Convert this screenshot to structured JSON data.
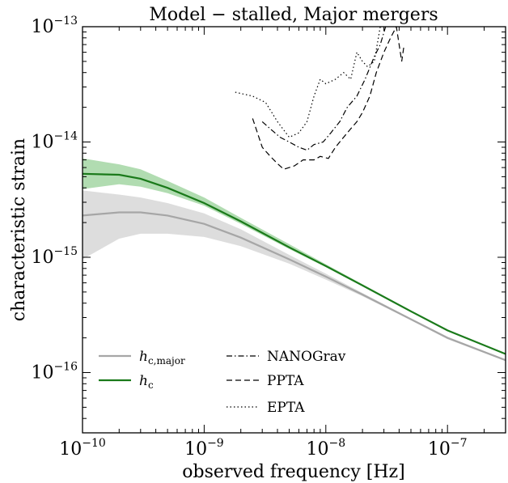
{
  "chart_data": {
    "type": "line",
    "title": "Model − stalled,  Major mergers",
    "xlabel": "observed frequency [Hz]",
    "ylabel": "characteristic strain",
    "xscale": "log",
    "yscale": "log",
    "xlim": [
      1e-10,
      3e-07
    ],
    "ylim": [
      3e-17,
      1e-13
    ],
    "grid": false,
    "legend_placement": "bottom-left",
    "x_ticks": [
      {
        "base": "10",
        "exp": "−10",
        "value": 1e-10
      },
      {
        "base": "10",
        "exp": "−9",
        "value": 1e-09
      },
      {
        "base": "10",
        "exp": "−8",
        "value": 1e-08
      },
      {
        "base": "10",
        "exp": "−7",
        "value": 1e-07
      }
    ],
    "y_ticks": [
      {
        "base": "10",
        "exp": "−16",
        "value": 1e-16
      },
      {
        "base": "10",
        "exp": "−15",
        "value": 1e-15
      },
      {
        "base": "10",
        "exp": "−14",
        "value": 1e-14
      },
      {
        "base": "10",
        "exp": "−13",
        "value": 1e-13
      }
    ],
    "series": [
      {
        "name": "h_c,major",
        "legend_main": "h",
        "legend_sub": "c,major",
        "color": "#a6a6a6",
        "band_color": "#d9d9d9",
        "style": "solid",
        "x": [
          1e-10,
          2e-10,
          3e-10,
          5e-10,
          1e-09,
          2e-09,
          5e-09,
          1e-08,
          2e-08,
          5e-08,
          1e-07,
          3e-07
        ],
        "y": [
          2.3e-15,
          2.45e-15,
          2.45e-15,
          2.3e-15,
          1.95e-15,
          1.48e-15,
          9.6e-16,
          6.8e-16,
          4.75e-16,
          2.9e-16,
          2e-16,
          1.28e-16
        ],
        "band_low": [
          9.6e-16,
          1.45e-15,
          1.6e-15,
          1.6e-15,
          1.5e-15,
          1.25e-15,
          8.8e-16,
          6.4e-16,
          4.6e-16,
          2.85e-16,
          1.95e-16,
          1.26e-16
        ],
        "band_high": [
          3.8e-15,
          3.5e-15,
          3.3e-15,
          2.95e-15,
          2.4e-15,
          1.75e-15,
          1.05e-15,
          7.2e-16,
          4.9e-16,
          2.95e-16,
          2.05e-16,
          1.3e-16
        ]
      },
      {
        "name": "h_c",
        "legend_main": "h",
        "legend_sub": "c",
        "color": "#1a7a1a",
        "band_color": "#a8d8a8",
        "style": "solid",
        "x": [
          1e-10,
          2e-10,
          3e-10,
          5e-10,
          1e-09,
          2e-09,
          5e-09,
          1e-08,
          2e-08,
          5e-08,
          1e-07,
          3e-07
        ],
        "y": [
          5.3e-15,
          5.2e-15,
          4.8e-15,
          4e-15,
          2.95e-15,
          2.05e-15,
          1.22e-15,
          8.4e-16,
          5.7e-16,
          3.4e-16,
          2.32e-16,
          1.45e-16
        ],
        "band_low": [
          3.9e-15,
          4.3e-15,
          4.1e-15,
          3.6e-15,
          2.8e-15,
          1.95e-15,
          1.18e-15,
          8.2e-16,
          5.6e-16,
          3.35e-16,
          2.3e-16,
          1.44e-16
        ],
        "band_high": [
          7.2e-15,
          6.4e-15,
          5.8e-15,
          4.6e-15,
          3.3e-15,
          2.2e-15,
          1.3e-15,
          8.7e-16,
          5.85e-16,
          3.45e-16,
          2.35e-16,
          1.46e-16
        ]
      },
      {
        "name": "NANOGrav",
        "color": "#000000",
        "style": "dashdot",
        "x": [
          3e-09,
          3.5e-09,
          4.2e-09,
          5e-09,
          6e-09,
          7e-09,
          8e-09,
          9.5e-09,
          1.1e-08,
          1.3e-08,
          1.5e-08,
          1.8e-08,
          2.1e-08,
          2.5e-08,
          2.8e-08,
          3.1e-08,
          3.4e-08
        ],
        "y": [
          1.5e-14,
          1.3e-14,
          1.1e-14,
          1e-14,
          9e-15,
          8.5e-15,
          9.5e-15,
          1e-14,
          1.2e-14,
          1.5e-14,
          2e-14,
          2.5e-14,
          3.5e-14,
          5.5e-14,
          7e-14,
          1e-13,
          1.1e-13
        ]
      },
      {
        "name": "PPTA",
        "color": "#000000",
        "style": "dashed",
        "x": [
          2.5e-09,
          3e-09,
          3.5e-09,
          4e-09,
          4.5e-09,
          5.5e-09,
          6.5e-09,
          8e-09,
          9e-09,
          1.05e-08,
          1.2e-08,
          1.4e-08,
          1.6e-08,
          1.8e-08,
          2e-08,
          2.3e-08,
          2.6e-08,
          3e-08,
          3.4e-08,
          3.8e-08,
          4.2e-08,
          4.4e-08
        ],
        "y": [
          1.6e-14,
          9e-15,
          7.5e-15,
          6.5e-15,
          5.8e-15,
          6.2e-15,
          7e-15,
          7e-15,
          7.5e-15,
          7.2e-15,
          9e-15,
          1.1e-14,
          1.3e-14,
          1.5e-14,
          1.8e-14,
          2.5e-14,
          4e-14,
          6e-14,
          8e-14,
          1e-13,
          5e-14,
          7e-14
        ]
      },
      {
        "name": "EPTA",
        "color": "#000000",
        "style": "dotted",
        "x": [
          1.8e-09,
          2.5e-09,
          3.2e-09,
          4e-09,
          5e-09,
          6e-09,
          7e-09,
          8e-09,
          9e-09,
          1e-08,
          1.2e-08,
          1.4e-08,
          1.6e-08,
          1.8e-08,
          2e-08,
          2.2e-08,
          2.5e-08,
          2.8e-08,
          3.2e-08,
          3.6e-08,
          4e-08
        ],
        "y": [
          2.7e-14,
          2.5e-14,
          2.2e-14,
          1.5e-14,
          1.1e-14,
          1.2e-14,
          1.5e-14,
          2.5e-14,
          3.5e-14,
          3.2e-14,
          3.5e-14,
          4e-14,
          3.5e-14,
          6e-14,
          5e-14,
          4.5e-14,
          5e-14,
          1e-13,
          1.1e-13,
          1e-13,
          1.15e-13
        ]
      }
    ]
  }
}
